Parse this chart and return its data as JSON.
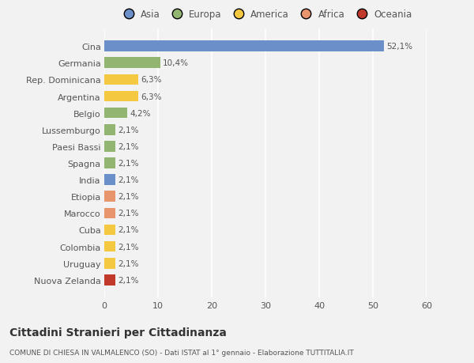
{
  "categories": [
    "Nuova Zelanda",
    "Uruguay",
    "Colombia",
    "Cuba",
    "Marocco",
    "Etiopia",
    "India",
    "Spagna",
    "Paesi Bassi",
    "Lussemburgo",
    "Belgio",
    "Argentina",
    "Rep. Dominicana",
    "Germania",
    "Cina"
  ],
  "values": [
    2.1,
    2.1,
    2.1,
    2.1,
    2.1,
    2.1,
    2.1,
    2.1,
    2.1,
    2.1,
    4.2,
    6.3,
    6.3,
    10.4,
    52.1
  ],
  "labels": [
    "2,1%",
    "2,1%",
    "2,1%",
    "2,1%",
    "2,1%",
    "2,1%",
    "2,1%",
    "2,1%",
    "2,1%",
    "2,1%",
    "4,2%",
    "6,3%",
    "6,3%",
    "10,4%",
    "52,1%"
  ],
  "colors": [
    "#c0392b",
    "#f5c842",
    "#f5c842",
    "#f5c842",
    "#e8956d",
    "#e8956d",
    "#6b8fc9",
    "#92b572",
    "#92b572",
    "#92b572",
    "#92b572",
    "#f5c842",
    "#f5c842",
    "#92b572",
    "#6b8fc9"
  ],
  "continent_colors": {
    "Asia": "#6b8fc9",
    "Europa": "#92b572",
    "America": "#f5c842",
    "Africa": "#e8956d",
    "Oceania": "#c0392b"
  },
  "xlim": [
    0,
    60
  ],
  "xticks": [
    0,
    10,
    20,
    30,
    40,
    50,
    60
  ],
  "title": "Cittadini Stranieri per Cittadinanza",
  "subtitle": "COMUNE DI CHIESA IN VALMALENCO (SO) - Dati ISTAT al 1° gennaio - Elaborazione TUTTITALIA.IT",
  "background_color": "#f2f2f2",
  "bar_height": 0.65,
  "grid_color": "#ffffff",
  "text_color": "#555555"
}
